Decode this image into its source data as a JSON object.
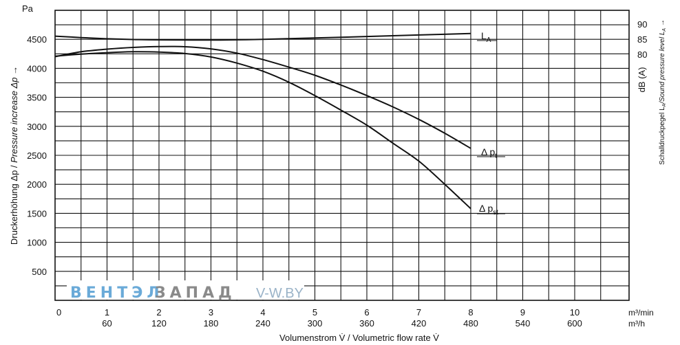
{
  "chart_data": {
    "type": "line",
    "title": "",
    "xlabel": "Volumenstrom V̇ / Volumetric flow rate V̇",
    "ylabel_de": "Druckerhöhung Δp / ",
    "ylabel_en": "Pressure increase  Δp →",
    "y_unit": "Pa",
    "ylim": [
      0,
      5000
    ],
    "y_ticks": [
      500,
      1000,
      1500,
      2000,
      2500,
      3000,
      3500,
      4000,
      4500
    ],
    "x_unit_min": "m³/min",
    "x_unit_h": "m³/h",
    "xlim": [
      0,
      11
    ],
    "x_ticks_min": [
      "0",
      "1",
      "2",
      "3",
      "4",
      "5",
      "6",
      "7",
      "8",
      "9",
      "10"
    ],
    "x_ticks_h": [
      "60",
      "120",
      "180",
      "240",
      "300",
      "360",
      "420",
      "480",
      "540",
      "600"
    ],
    "right_axis": {
      "unit": "dB (A)",
      "label": "Schalldruckpegel L",
      "label_sub": "A",
      "label_en": "/Sound pressure level L",
      "label_en_sub": "A",
      "label_arrow": " →",
      "ticks": [
        "90",
        "85",
        "80"
      ]
    },
    "series": [
      {
        "name": "LA",
        "label_main": "L",
        "label_sub": "A",
        "x": [
          0,
          0.5,
          1,
          1.5,
          2,
          3,
          4,
          5,
          6,
          7,
          8
        ],
        "y": [
          4555,
          4530,
          4510,
          4497,
          4490,
          4487,
          4500,
          4523,
          4548,
          4575,
          4600
        ]
      },
      {
        "name": "Δpt",
        "label_main": "Δ p",
        "label_sub": "t",
        "x": [
          0,
          0.5,
          1,
          1.5,
          2,
          2.5,
          3,
          3.5,
          4,
          4.5,
          5,
          5.5,
          6,
          6.5,
          7,
          7.5,
          8
        ],
        "y": [
          4200,
          4285,
          4330,
          4360,
          4375,
          4372,
          4335,
          4262,
          4150,
          4020,
          3880,
          3712,
          3530,
          3335,
          3120,
          2880,
          2620
        ]
      },
      {
        "name": "Δpst",
        "label_main": "Δ p",
        "label_sub": "st",
        "x": [
          0,
          0.5,
          1,
          1.5,
          2,
          2.5,
          3,
          3.5,
          4,
          4.5,
          5,
          5.5,
          6,
          6.5,
          7,
          7.5,
          8
        ],
        "y": [
          4210,
          4245,
          4270,
          4285,
          4280,
          4255,
          4195,
          4090,
          3950,
          3760,
          3530,
          3280,
          3020,
          2710,
          2400,
          2000,
          1580
        ]
      }
    ]
  },
  "watermark": {
    "part1": "ВЕНТЭЛ",
    "part2": "ЗАПАД",
    "part3": "V-W.BY",
    "color1": "#6aaad8",
    "color2": "#8a8a8a",
    "color3": "#9ab3c8"
  }
}
